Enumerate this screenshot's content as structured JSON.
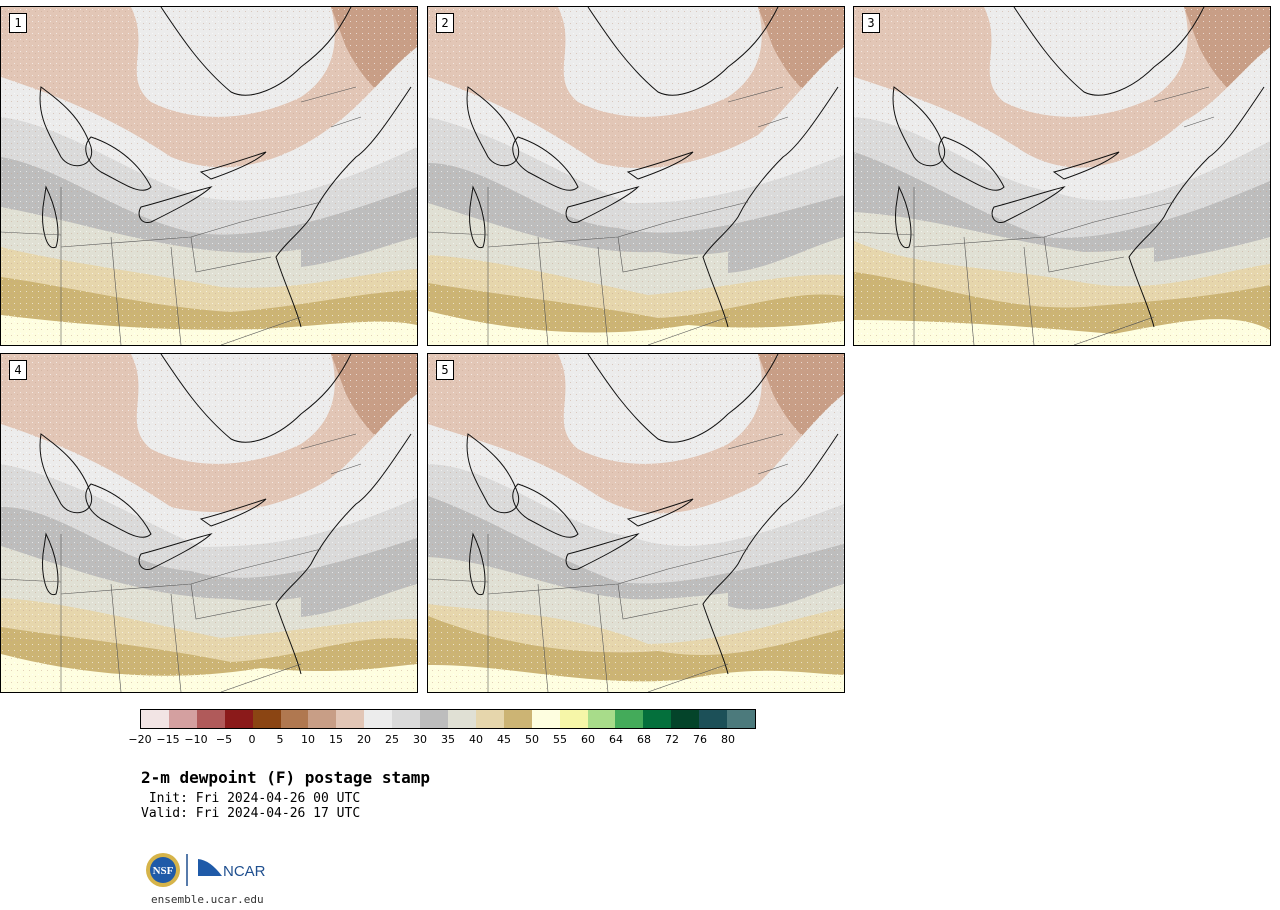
{
  "members": [
    {
      "label": "1",
      "variant": 0
    },
    {
      "label": "2",
      "variant": 1
    },
    {
      "label": "3",
      "variant": 2
    },
    {
      "label": "4",
      "variant": 3
    },
    {
      "label": "5",
      "variant": 4
    }
  ],
  "colorbar": {
    "colors": [
      "#f2e4e4",
      "#d4a0a0",
      "#b05a5a",
      "#8b1a1a",
      "#8b4513",
      "#b07850",
      "#c89e86",
      "#e2c6b6",
      "#ececec",
      "#dadada",
      "#bdbdbd",
      "#e0e0d4",
      "#e6d6ac",
      "#ccb474",
      "#fefee0",
      "#f6f6a8",
      "#a8dc8a",
      "#44ab5a",
      "#04703c",
      "#04442a",
      "#1c5058",
      "#4c7a7c"
    ],
    "tick_labels": [
      "−20",
      "−15",
      "−10",
      "−5",
      "0",
      "5",
      "10",
      "15",
      "20",
      "25",
      "30",
      "35",
      "40",
      "45",
      "50",
      "55",
      "60",
      "64",
      "68",
      "72",
      "76",
      "80"
    ]
  },
  "title": "2-m dewpoint (F) postage stamp",
  "init": " Init: Fri 2024-04-26 00 UTC",
  "valid": "Valid: Fri 2024-04-26 17 UTC",
  "logos": {
    "nsf": "NSF",
    "ncar": "NCAR"
  },
  "website": "ensemble.ucar.edu"
}
